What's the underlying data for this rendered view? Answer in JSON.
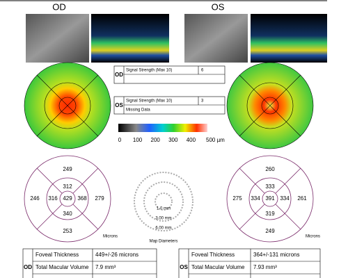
{
  "header": {
    "left": "OD",
    "right": "OS"
  },
  "signal": {
    "od": {
      "eye": "OD",
      "label": "Signal Strength (Max 10)",
      "value": "6"
    },
    "os": {
      "eye": "OS",
      "label": "Signal Strength (Max 10)",
      "value": "3",
      "note": "Missing Data"
    }
  },
  "scale": {
    "ticks": [
      "0",
      "100",
      "200",
      "300",
      "400",
      "500 µm"
    ]
  },
  "thickness": {
    "od": {
      "outer_top": 249,
      "inner_top": 312,
      "outer_left": 246,
      "inner_left": 316,
      "center": 429,
      "inner_right": 368,
      "outer_right": 279,
      "inner_bottom": 340,
      "outer_bottom": 253,
      "unit": "Microns"
    },
    "os": {
      "outer_top": 260,
      "inner_top": 333,
      "outer_left": 275,
      "inner_left": 334,
      "center": 391,
      "inner_right": 334,
      "outer_right": 261,
      "inner_bottom": 319,
      "outer_bottom": 249,
      "unit": "Microns"
    }
  },
  "diameters": {
    "d1": "1.0 mm",
    "d2": "3.00 mm",
    "d3": "6.00 mm",
    "title": "Map Diameters"
  },
  "tables": {
    "od": {
      "eye": "OD",
      "rows": [
        [
          "Foveal Thickness",
          "449+/-26 microns"
        ],
        [
          "Total Macular Volume",
          "7.9 mm³"
        ]
      ]
    },
    "os": {
      "eye": "OS",
      "rows": [
        [
          "Foveal Thickness",
          "364+/-131 microns"
        ],
        [
          "Total Macular Volume",
          "7.93 mm³"
        ]
      ]
    }
  }
}
